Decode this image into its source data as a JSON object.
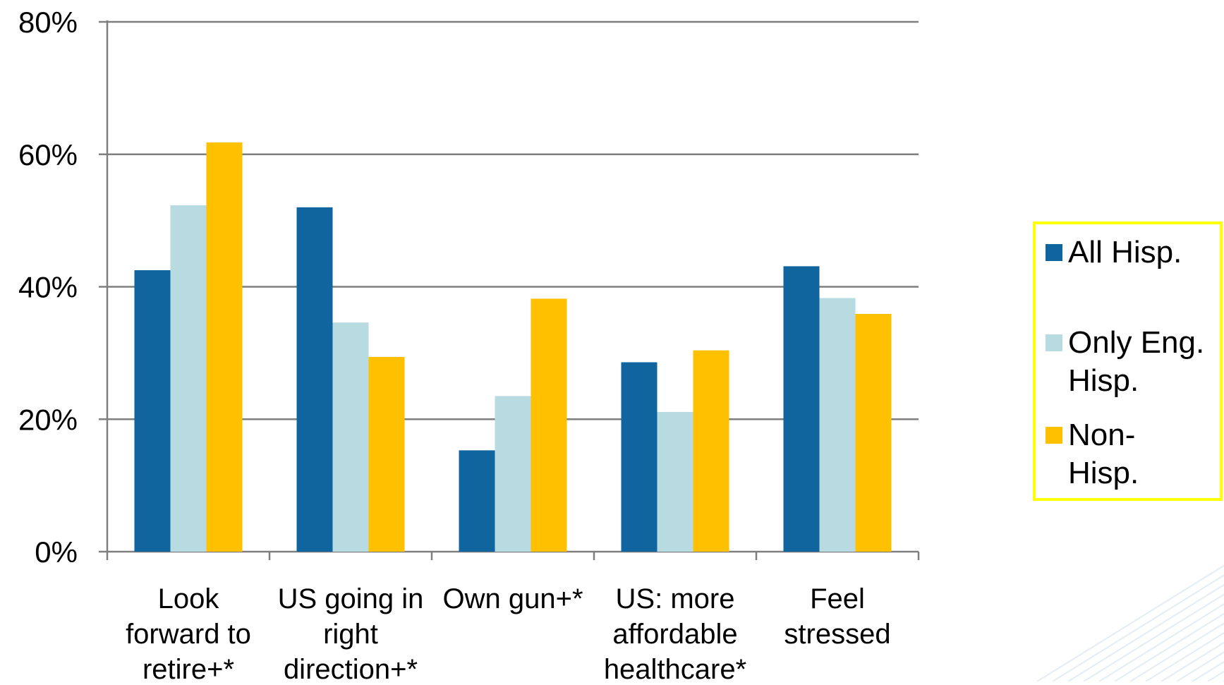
{
  "chart_data": {
    "type": "bar",
    "categories": [
      [
        "Look",
        "forward to",
        "retire+*"
      ],
      [
        "US going in",
        "right",
        "direction+*"
      ],
      [
        "Own gun+*"
      ],
      [
        "US: more",
        "affordable",
        "healthcare*"
      ],
      [
        "Feel",
        "stressed"
      ]
    ],
    "series": [
      {
        "name": "All Hisp.",
        "color": "#11659E",
        "values": [
          42.5,
          52,
          15.3,
          28.6,
          43.1
        ]
      },
      {
        "name": "Only Eng. Hisp.",
        "color": "#B7DBE1",
        "values": [
          52.3,
          34.6,
          23.5,
          21.1,
          38.3
        ]
      },
      {
        "name": "Non-Hisp.",
        "color": "#FFC000",
        "values": [
          61.8,
          29.4,
          38.2,
          30.4,
          35.9
        ]
      }
    ],
    "legend_lines": [
      [
        "All Hisp."
      ],
      [
        "Only Eng.",
        "Hisp."
      ],
      [
        "Non-",
        "Hisp."
      ]
    ],
    "ylim": [
      0,
      80
    ],
    "ytick_labels": [
      "0%",
      "20%",
      "40%",
      "60%",
      "80%"
    ],
    "grid": true,
    "legend_position": "right",
    "legend_border_color": "#FFFF00",
    "gridline_color": "#7F7F7F"
  }
}
